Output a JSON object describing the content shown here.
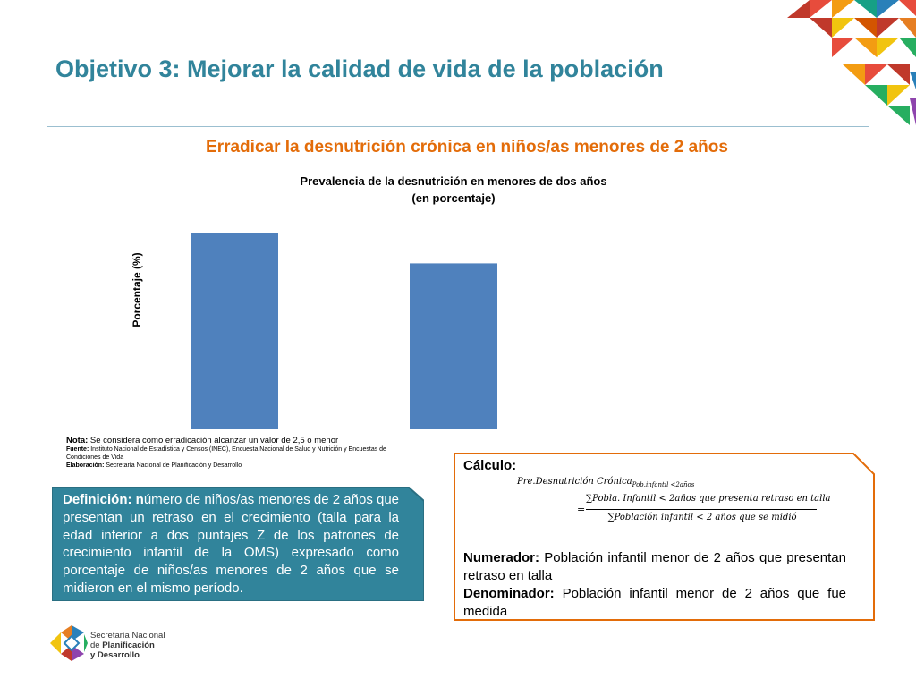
{
  "title": "Objetivo 3: Mejorar la calidad de vida de la población",
  "subtitle": "Erradicar la desnutrición crónica en niños/as menores de 2 años",
  "chart": {
    "title_line1": "Prevalencia de la desnutrición en menores de dos años",
    "title_line2": "(en porcentaje)"
  },
  "chart_data": {
    "type": "bar",
    "categories": [
      "",
      ""
    ],
    "values": [
      23.2,
      19.6
    ],
    "ylabel": "Porcentaje (%)",
    "ylim": [
      0,
      24.5
    ],
    "color": "#4f81bd",
    "grid": false
  },
  "notes": {
    "nota_label": "Nota:",
    "nota_text": " Se considera como erradicación alcanzar un valor de 2,5 o menor",
    "fuente_label": "Fuente:",
    "fuente_text": " Instituto Nacional de Estadística y Censos (INEC), Encuesta Nacional de Salud y Nutrición y Encuestas de Condiciones de Vida",
    "elaboracion_label": "Elaboración:",
    "elaboracion_text": " Secretaría Nacional de Planificación y Desarrollo"
  },
  "definition": {
    "label": "Definición: n",
    "text": "úmero de niños/as menores de 2 años que presentan un retraso en el crecimiento (talla para la edad inferior a dos puntajes Z de los patrones de crecimiento infantil de la OMS) expresado como porcentaje de niños/as menores de 2 años que se midieron en el mismo período.",
    "bg_color": "#31849b"
  },
  "calculation": {
    "label": "Cálculo:",
    "formula_lhs": "Pre.Desnutrición Crónica",
    "formula_lhs_sub": "Pob.infantil <2años",
    "formula_eq": "=",
    "formula_num": "∑Pobla. Infantil < 2años que presenta retraso en talla",
    "formula_den": "∑Población infantil < 2 años que se midió",
    "numerador_label": "Numerador:",
    "numerador_text": " Población infantil menor de 2 años que presentan retraso en talla",
    "denominador_label": "Denominador:",
    "denominador_text": " Población infantil menor de 2 años que fue medida",
    "border_color": "#e36c09"
  },
  "logo": {
    "line1": "Secretaría Nacional",
    "line2_prefix": "de ",
    "line2_bold": "Planificación",
    "line3": "y Desarrollo"
  },
  "colors": {
    "title": "#31849b",
    "subtitle": "#e36c09",
    "bar": "#4f81bd"
  }
}
